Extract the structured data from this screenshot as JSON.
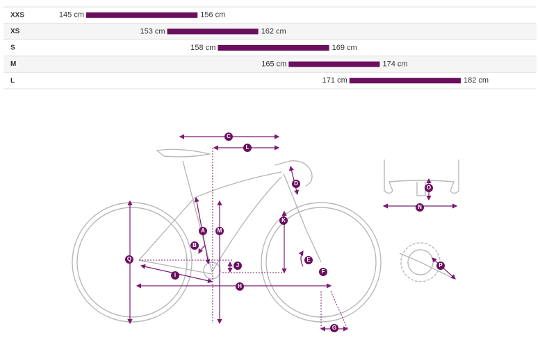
{
  "chart_data": {
    "type": "range",
    "categories": [
      "XXS",
      "XS",
      "S",
      "M",
      "L"
    ],
    "low": {
      "values": [
        145,
        153,
        158,
        165,
        171
      ],
      "value_labels": [
        "145 cm",
        "153 cm",
        "158 cm",
        "165 cm",
        "171 cm"
      ]
    },
    "high": {
      "values": [
        156,
        162,
        169,
        174,
        182
      ],
      "value_labels": [
        "156 cm",
        "162 cm",
        "169 cm",
        "174 cm",
        "182 cm"
      ]
    },
    "color": "#6a0f5e"
  },
  "diagram": {
    "labels": [
      "A",
      "B",
      "C",
      "D",
      "E",
      "F",
      "G",
      "H",
      "I",
      "J",
      "K",
      "L",
      "M",
      "N",
      "O",
      "P",
      "Q"
    ]
  }
}
